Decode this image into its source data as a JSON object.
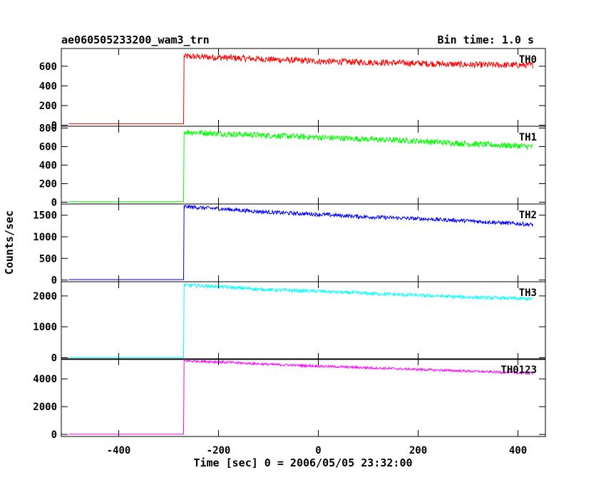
{
  "chart_data": {
    "type": "line",
    "title": "ae060505233200_wam3_trn",
    "subtitle": "Bin time: 1.0 s",
    "xlabel": "Time [sec] 0 = 2006/05/05 23:32:00",
    "ylabel": "Counts/sec",
    "xlim": [
      -515,
      455
    ],
    "x_ticks": [
      -400,
      -200,
      0,
      200,
      400
    ],
    "grid": false,
    "panels": [
      {
        "label": "TH0",
        "color": "#ff0000",
        "ylim": [
          -10,
          780
        ],
        "y_ticks": [
          0,
          200,
          400,
          600
        ],
        "baseline": 15,
        "onset_x": -270,
        "peak": 700,
        "end_value": 610,
        "noise": 32,
        "x": [
          -500,
          -270,
          -269,
          -200,
          -100,
          0,
          100,
          200,
          300,
          430
        ],
        "values": [
          15,
          15,
          700,
          690,
          670,
          650,
          640,
          630,
          615,
          610
        ]
      },
      {
        "label": "TH1",
        "color": "#00ff00",
        "ylim": [
          -20,
          820
        ],
        "y_ticks": [
          0,
          200,
          400,
          600,
          800
        ],
        "baseline": 5,
        "onset_x": -270,
        "peak": 760,
        "end_value": 600,
        "noise": 32,
        "x": [
          -500,
          -270,
          -269,
          -200,
          -100,
          0,
          100,
          200,
          300,
          430
        ],
        "values": [
          5,
          5,
          760,
          740,
          720,
          700,
          680,
          660,
          630,
          600
        ]
      },
      {
        "label": "TH2",
        "color": "#0000ff",
        "ylim": [
          -40,
          1760
        ],
        "y_ticks": [
          0,
          500,
          1000,
          1500
        ],
        "baseline": 10,
        "onset_x": -270,
        "peak": 1700,
        "end_value": 1280,
        "noise": 45,
        "x": [
          -500,
          -270,
          -269,
          -200,
          -100,
          0,
          100,
          200,
          300,
          430
        ],
        "values": [
          10,
          10,
          1700,
          1650,
          1570,
          1520,
          1460,
          1420,
          1370,
          1280
        ]
      },
      {
        "label": "TH3",
        "color": "#00ffff",
        "ylim": [
          -60,
          2460
        ],
        "y_ticks": [
          0,
          1000,
          2000
        ],
        "baseline": 10,
        "onset_x": -270,
        "peak": 2350,
        "end_value": 1900,
        "noise": 55,
        "x": [
          -500,
          -270,
          -269,
          -200,
          -100,
          0,
          100,
          200,
          300,
          430
        ],
        "values": [
          10,
          10,
          2350,
          2300,
          2200,
          2150,
          2080,
          2020,
          1960,
          1900
        ]
      },
      {
        "label": "TH0123",
        "color": "#ff00ff",
        "ylim": [
          -150,
          5450
        ],
        "y_ticks": [
          0,
          2000,
          4000
        ],
        "baseline": 20,
        "onset_x": -270,
        "peak": 5300,
        "end_value": 4400,
        "noise": 85,
        "x": [
          -500,
          -270,
          -269,
          -200,
          -100,
          0,
          100,
          200,
          300,
          430
        ],
        "values": [
          20,
          20,
          5300,
          5220,
          5050,
          4920,
          4800,
          4680,
          4560,
          4400
        ]
      }
    ]
  }
}
